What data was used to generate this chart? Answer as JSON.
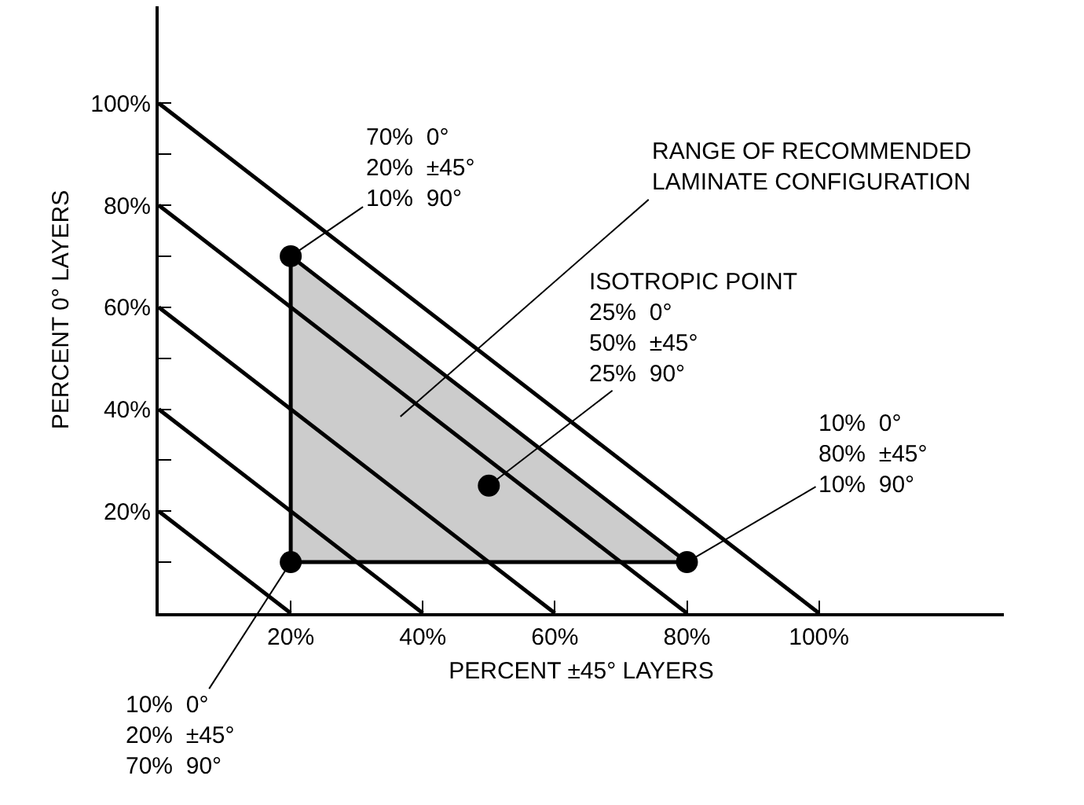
{
  "chart_data": {
    "type": "line",
    "xlabel": "PERCENT ±45° LAYERS",
    "ylabel": "PERCENT 0° LAYERS",
    "xlim": [
      0,
      128
    ],
    "ylim": [
      0,
      119
    ],
    "xticks": [
      {
        "value": 20,
        "label": "20%"
      },
      {
        "value": 40,
        "label": "40%"
      },
      {
        "value": 60,
        "label": "60%"
      },
      {
        "value": 80,
        "label": "80%"
      },
      {
        "value": 100,
        "label": "100%"
      }
    ],
    "yticks": [
      {
        "value": 10,
        "label": null
      },
      {
        "value": 20,
        "label": "20%"
      },
      {
        "value": 30,
        "label": null
      },
      {
        "value": 40,
        "label": "40%"
      },
      {
        "value": 50,
        "label": null
      },
      {
        "value": 60,
        "label": "60%"
      },
      {
        "value": 70,
        "label": null
      },
      {
        "value": 80,
        "label": "80%"
      },
      {
        "value": 90,
        "label": null
      },
      {
        "value": 100,
        "label": "100%"
      }
    ],
    "grid": false,
    "line_style": "solid",
    "series": [
      {
        "type": "area",
        "color": "#cccccc",
        "x": [
          20,
          20,
          80,
          20
        ],
        "values": [
          70,
          10,
          10,
          70
        ]
      },
      {
        "color": "#000000",
        "x": [
          0,
          20
        ],
        "values": [
          20,
          0
        ]
      },
      {
        "color": "#000000",
        "x": [
          0,
          40
        ],
        "values": [
          40,
          0
        ]
      },
      {
        "color": "#000000",
        "x": [
          0,
          60
        ],
        "values": [
          60,
          0
        ]
      },
      {
        "color": "#000000",
        "x": [
          0,
          80
        ],
        "values": [
          80,
          0
        ]
      },
      {
        "color": "#000000",
        "x": [
          0,
          100
        ],
        "values": [
          100,
          0
        ]
      },
      {
        "type": "scatter",
        "color": "#000000",
        "marker": "circle",
        "x": [
          20,
          20,
          80,
          50
        ],
        "values": [
          70,
          10,
          10,
          25
        ]
      }
    ],
    "annotations": [
      {
        "text": "70%  0°\n20%  ±45°\n10%  90°",
        "x": 20,
        "y": 70
      },
      "RANGE OF RECOMMENDED\nLAMINATE CONFIGURATION",
      {
        "text": "ISOTROPIC POINT\n25%  0°\n50%  ±45°\n25%  90°",
        "x": 50,
        "y": 25
      },
      {
        "text": "10%  0°\n80%  ±45°\n10%  90°",
        "x": 80,
        "y": 10
      },
      {
        "text": "10%  0°\n20%  ±45°\n70%  90°",
        "x": 20,
        "y": 10
      }
    ]
  }
}
